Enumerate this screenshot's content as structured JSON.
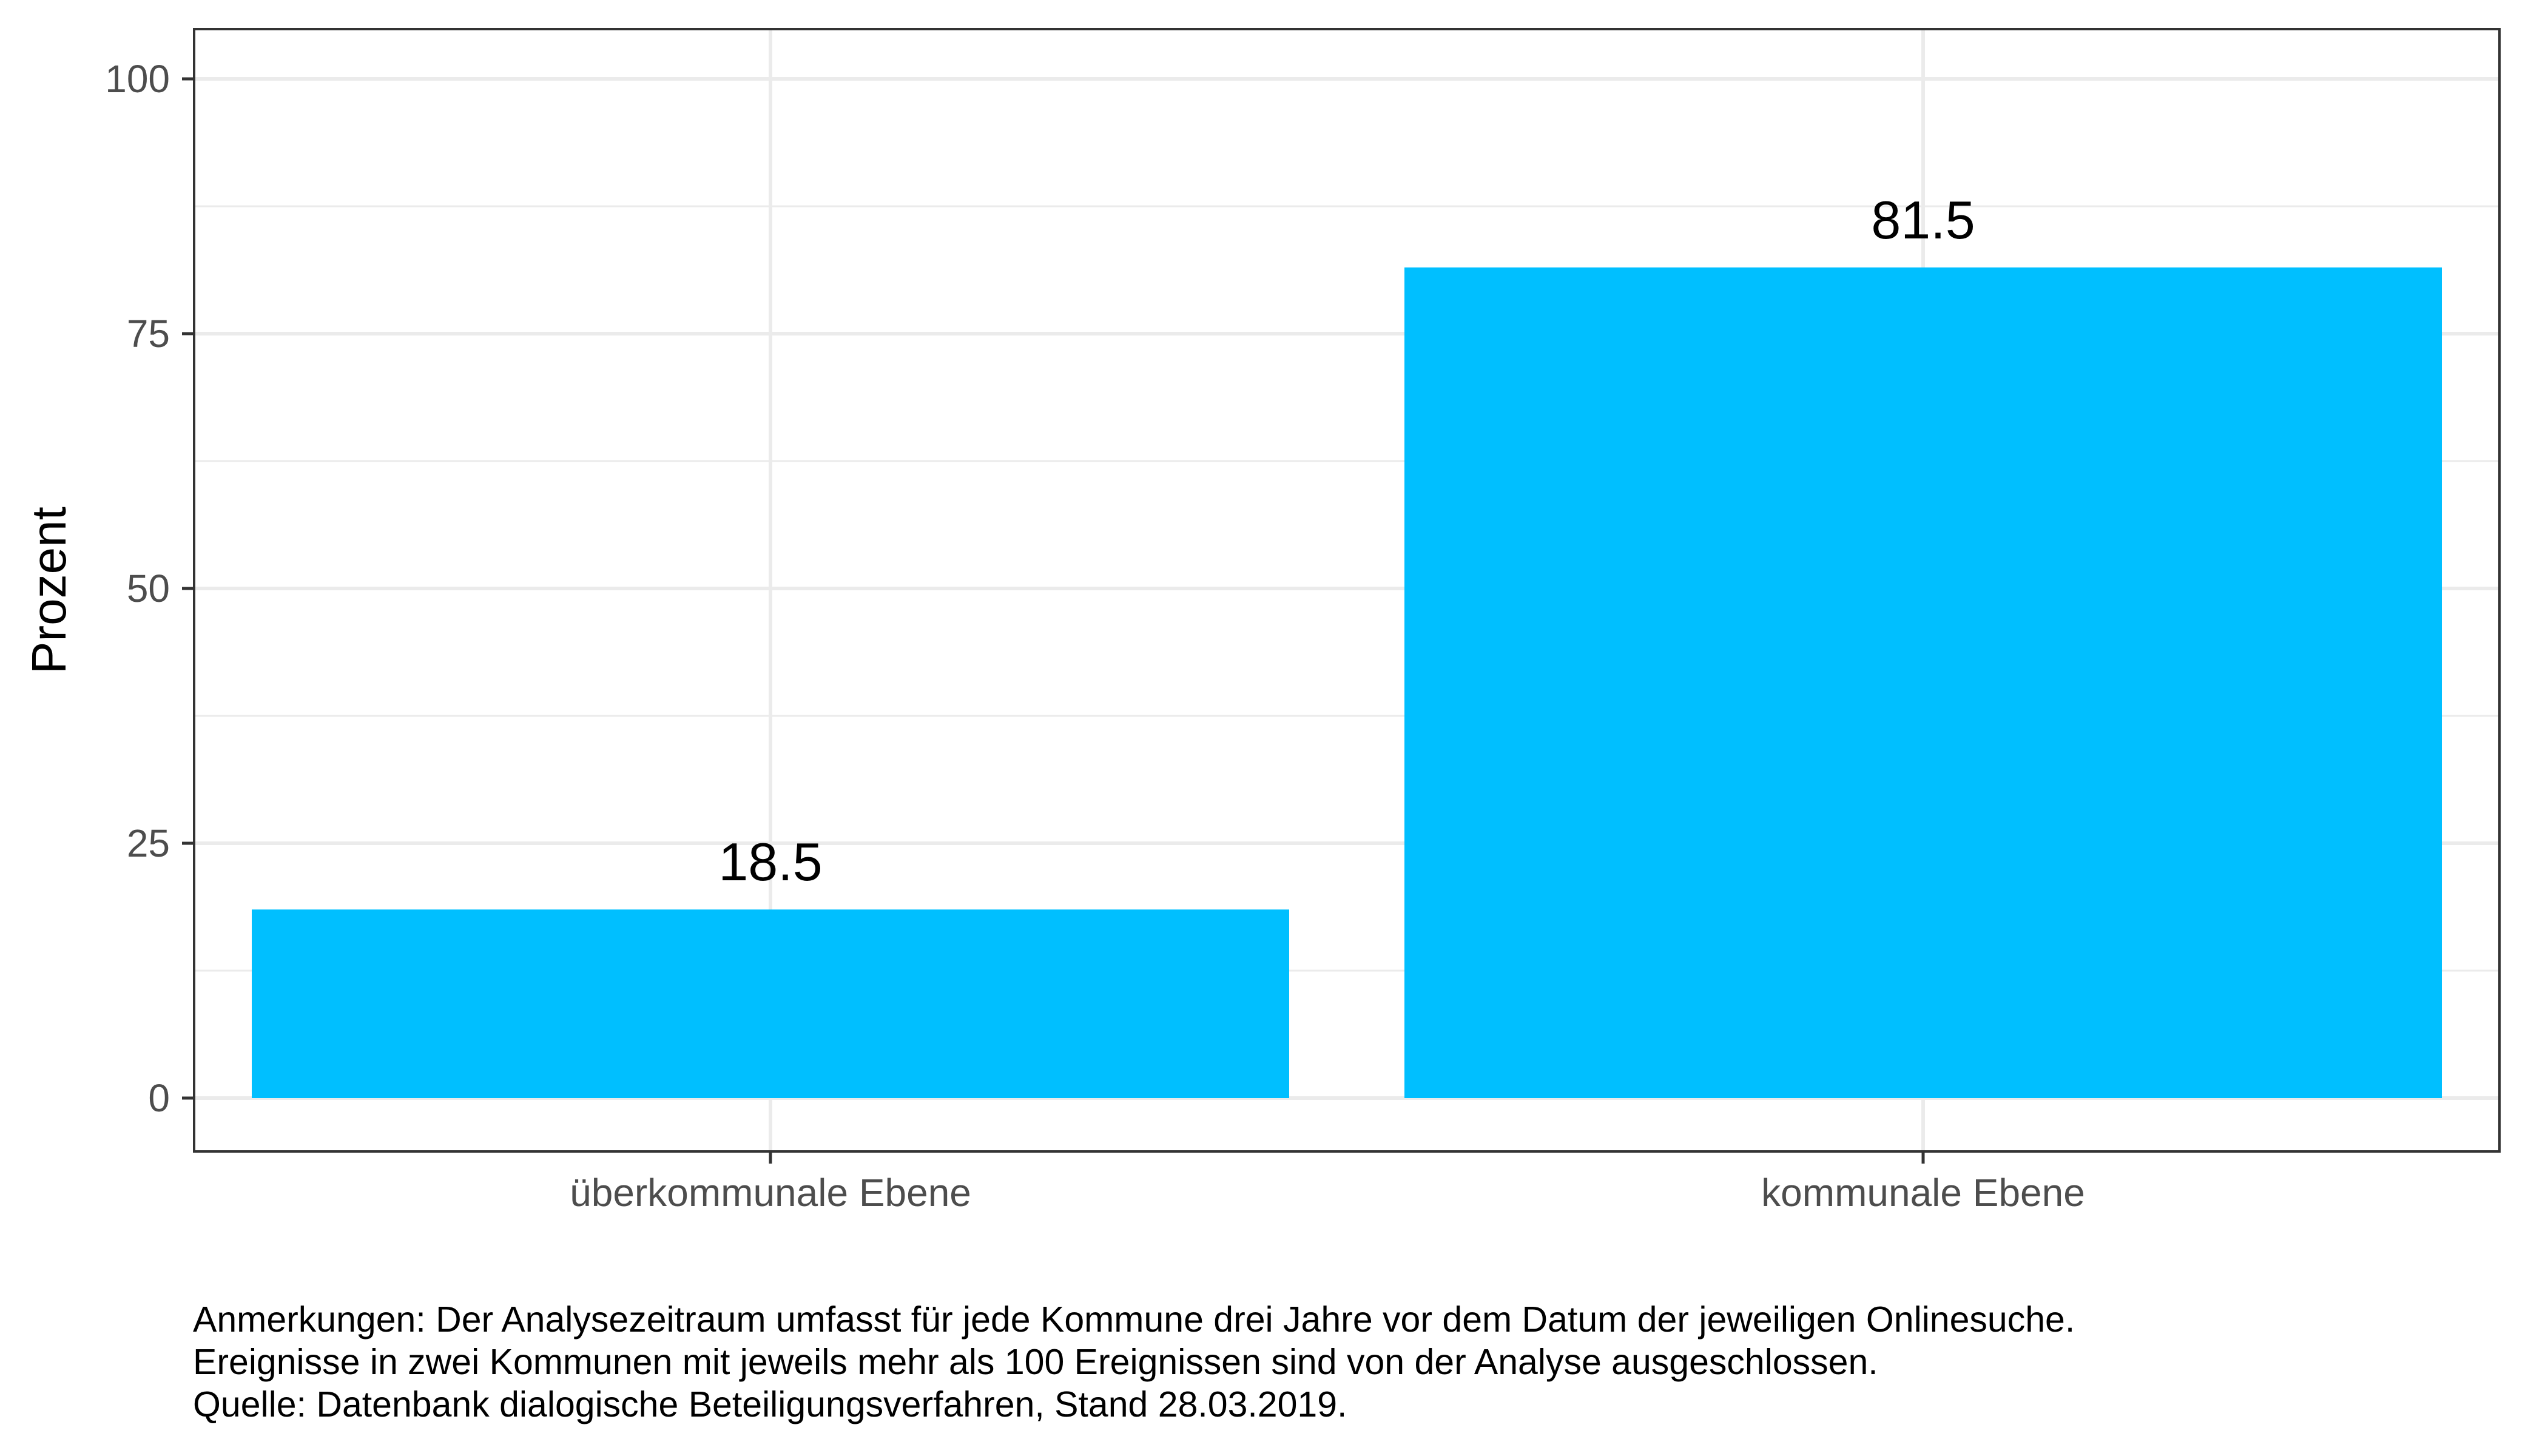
{
  "chart_data": {
    "type": "bar",
    "categories": [
      "überkommunale Ebene",
      "kommunale Ebene"
    ],
    "values": [
      18.5,
      81.5
    ],
    "data_labels": [
      "18.5",
      "81.5"
    ],
    "title": "",
    "xlabel": "",
    "ylabel": "Prozent",
    "ylim": [
      0,
      100
    ],
    "yticks": [
      0,
      25,
      50,
      75,
      100
    ],
    "grid": true,
    "colors": {
      "bar": "#00BFFF",
      "grid": "#ebebeb",
      "frame": "#333333"
    }
  },
  "notes": [
    "Anmerkungen: Der Analysezeitraum umfasst für jede Kommune drei Jahre vor dem Datum der jeweiligen Onlinesuche.",
    "Ereignisse in zwei Kommunen mit jeweils mehr als 100 Ereignissen sind von der Analyse ausgeschlossen.",
    "Quelle: Datenbank dialogische Beteiligungsverfahren, Stand 28.03.2019."
  ]
}
